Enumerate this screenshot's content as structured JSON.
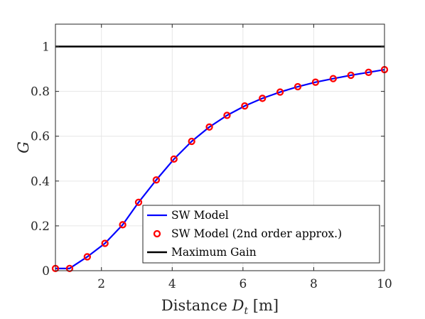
{
  "chart_data": {
    "type": "line",
    "xlabel": {
      "main": "Distance ",
      "var": "D",
      "sub": "t",
      "unit": " [m]"
    },
    "ylabel": "G",
    "xlim": [
      0.7,
      10
    ],
    "ylim": [
      0,
      1.1
    ],
    "xticks": [
      2,
      4,
      6,
      8,
      10
    ],
    "xtick_labels": [
      "2",
      "4",
      "6",
      "8",
      "10"
    ],
    "yticks": [
      0,
      0.2,
      0.4,
      0.6,
      0.8,
      1
    ],
    "ytick_labels": [
      "0",
      "0.2",
      "0.4",
      "0.6",
      "0.8",
      "1"
    ],
    "grid": true,
    "legend_position": "bottom-right",
    "series": [
      {
        "name": "SW Model",
        "style": "line",
        "color": "#0000ff",
        "x": [
          0.7,
          1.1,
          1.6,
          2.1,
          2.6,
          3.05,
          3.55,
          4.05,
          4.55,
          5.05,
          5.55,
          6.05,
          6.55,
          7.05,
          7.55,
          8.05,
          8.55,
          9.05,
          9.55,
          10.0
        ],
        "y": [
          0.01,
          0.01,
          0.062,
          0.122,
          0.205,
          0.305,
          0.405,
          0.498,
          0.577,
          0.641,
          0.693,
          0.735,
          0.769,
          0.797,
          0.821,
          0.841,
          0.857,
          0.872,
          0.885,
          0.897
        ]
      },
      {
        "name": "SW Model (2nd order approx.)",
        "style": "markers",
        "marker": "circle",
        "color": "#ff0000",
        "x": [
          0.7,
          1.1,
          1.6,
          2.1,
          2.6,
          3.05,
          3.55,
          4.05,
          4.55,
          5.05,
          5.55,
          6.05,
          6.55,
          7.05,
          7.55,
          8.05,
          8.55,
          9.05,
          9.55,
          10.0
        ],
        "y": [
          0.01,
          0.01,
          0.062,
          0.122,
          0.205,
          0.305,
          0.405,
          0.498,
          0.577,
          0.641,
          0.693,
          0.735,
          0.769,
          0.797,
          0.821,
          0.841,
          0.857,
          0.872,
          0.885,
          0.897
        ]
      },
      {
        "name": "Maximum Gain",
        "style": "line",
        "color": "#000000",
        "x": [
          0.7,
          10
        ],
        "y": [
          1,
          1
        ]
      }
    ]
  }
}
